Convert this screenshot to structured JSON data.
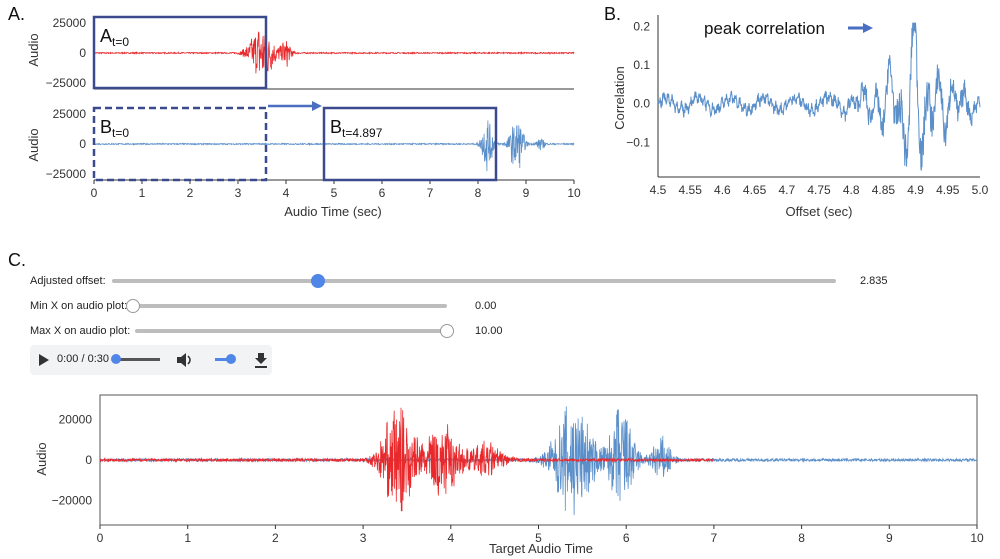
{
  "panel_labels": {
    "a": "A.",
    "b": "B.",
    "c": "C."
  },
  "controls": {
    "adjusted_offset": {
      "label": "Adjusted offset:",
      "value": "2.835",
      "fraction": 0.285
    },
    "min_x": {
      "label": "Min X on audio plot:",
      "value": "0.00",
      "fraction": 0.0
    },
    "max_x": {
      "label": "Max X on audio plot:",
      "value": "10.00",
      "fraction": 1.0
    }
  },
  "player": {
    "time": "0:00 / 0:30",
    "progress": 0.0,
    "volume": 1.0,
    "play_icon": "play-icon",
    "volume_icon": "volume-icon",
    "download_icon": "download-icon"
  },
  "annotations": {
    "a_t0": {
      "main": "A",
      "sub": "t=0"
    },
    "b_t0": {
      "main": "B",
      "sub": "t=0"
    },
    "b_t4897": {
      "main": "B",
      "sub": "t=4.897"
    },
    "peak": "peak correlation"
  },
  "colors": {
    "red": "#e8282b",
    "blue": "#5b8fc9",
    "box": "#3a4a8c",
    "arrow": "#4a6fc0"
  },
  "chart_data": [
    {
      "id": "A_top",
      "type": "line",
      "ylabel": "Audio",
      "xlim": [
        0,
        10
      ],
      "ylim": [
        -30000,
        30000
      ],
      "yticks": [
        "25000",
        "0",
        "−25000"
      ],
      "ytick_values": [
        25000,
        0,
        -25000
      ],
      "series": [
        {
          "color": "#e8282b",
          "bursts": [
            {
              "center": 3.5,
              "width": 0.45,
              "amp": 26000
            },
            {
              "center": 4.0,
              "width": 0.2,
              "amp": 12000
            }
          ]
        }
      ]
    },
    {
      "id": "A_bottom",
      "type": "line",
      "ylabel": "Audio",
      "xlabel": "Audio Time (sec)",
      "xlim": [
        0,
        10
      ],
      "ylim": [
        -30000,
        30000
      ],
      "xticks": [
        "0",
        "1",
        "2",
        "3",
        "4",
        "5",
        "6",
        "7",
        "8",
        "9",
        "10"
      ],
      "yticks": [
        "25000",
        "0",
        "−25000"
      ],
      "ytick_values": [
        25000,
        0,
        -25000
      ],
      "series": [
        {
          "color": "#5b8fc9",
          "bursts": [
            {
              "center": 8.2,
              "width": 0.2,
              "amp": 26000
            },
            {
              "center": 8.8,
              "width": 0.25,
              "amp": 25000
            },
            {
              "center": 9.3,
              "width": 0.15,
              "amp": 6000
            }
          ]
        }
      ]
    },
    {
      "id": "B",
      "type": "line",
      "ylabel": "Correlation",
      "xlabel": "Offset (sec)",
      "xlim": [
        4.5,
        5.0
      ],
      "ylim": [
        -0.19,
        0.23
      ],
      "xticks": [
        "4.5",
        "4.55",
        "4.6",
        "4.65",
        "4.7",
        "4.75",
        "4.8",
        "4.85",
        "4.9",
        "4.95",
        "5.0"
      ],
      "yticks": [
        "0.2",
        "0.1",
        "0.0",
        "−0.1"
      ],
      "ytick_values": [
        0.2,
        0.1,
        0.0,
        -0.1
      ],
      "series": [
        {
          "color": "#5b8fc9",
          "peak_x": 4.897,
          "peak_y": 0.21,
          "min_y": -0.18
        }
      ]
    },
    {
      "id": "C",
      "type": "line",
      "ylabel": "Audio",
      "xlabel": "Target Audio Time",
      "xlim": [
        0,
        10
      ],
      "ylim": [
        -32000,
        32000
      ],
      "xticks": [
        "0",
        "1",
        "2",
        "3",
        "4",
        "5",
        "6",
        "7",
        "8",
        "9",
        "10"
      ],
      "yticks": [
        "20000",
        "0",
        "−20000"
      ],
      "ytick_values": [
        20000,
        0,
        -20000
      ],
      "series": [
        {
          "color": "#e8282b",
          "bursts": [
            {
              "center": 3.4,
              "width": 0.35,
              "amp": 27000
            },
            {
              "center": 3.9,
              "width": 0.35,
              "amp": 20000
            },
            {
              "center": 4.4,
              "width": 0.35,
              "amp": 9000
            }
          ]
        },
        {
          "color": "#5b8fc9",
          "bursts": [
            {
              "center": 5.4,
              "width": 0.4,
              "amp": 31000
            },
            {
              "center": 5.95,
              "width": 0.25,
              "amp": 30000
            },
            {
              "center": 6.4,
              "width": 0.2,
              "amp": 12000
            }
          ]
        }
      ]
    }
  ]
}
